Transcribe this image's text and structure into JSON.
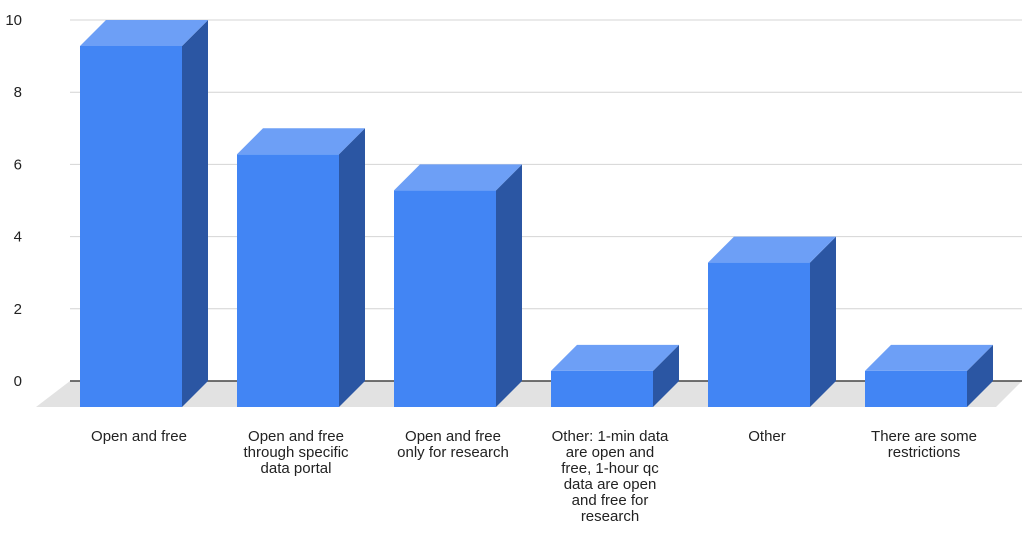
{
  "chart_data": {
    "type": "bar",
    "style": "3d-column",
    "title": "",
    "xlabel": "",
    "ylabel": "",
    "ylim": [
      0,
      10
    ],
    "yticks": [
      "0",
      "2",
      "4",
      "6",
      "8",
      "10"
    ],
    "grid": true,
    "legend": "none",
    "categories": [
      "Open and free",
      "Open and free through  specific data portal",
      "Open and free only for research",
      "Other: 1-min data are open and free, 1-hour qc data are open and free for research",
      "Other",
      "There are some restrictions"
    ],
    "category_lines": [
      [
        "Open and free"
      ],
      [
        "Open and free",
        "through  specific",
        "data portal"
      ],
      [
        "Open and free",
        "only for research"
      ],
      [
        "Other: 1-min data",
        "are open and",
        "free, 1-hour qc",
        "data are open",
        "and free for",
        "research"
      ],
      [
        "Other"
      ],
      [
        "There are some",
        "restrictions"
      ]
    ],
    "values": [
      10,
      7,
      6,
      1,
      4,
      1
    ],
    "colors": {
      "front": "#4285f4",
      "top": "#6d9ff6",
      "side": "#2b56a3",
      "floor": "#e2e2e2",
      "grid": "#d4d4d4",
      "baseline": "#444444"
    }
  }
}
